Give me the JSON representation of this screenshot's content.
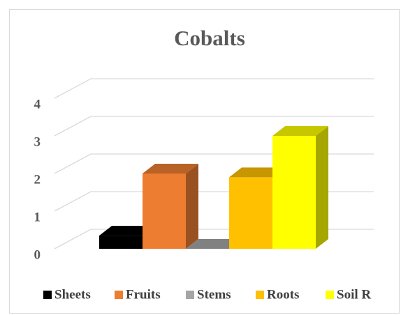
{
  "chart_data": {
    "type": "bar3d",
    "title": "Cobalts",
    "series": [
      {
        "name": "Sheets",
        "color": "#000000",
        "values": [
          0.35
        ]
      },
      {
        "name": "Fruits",
        "color": "#ed7d31",
        "values": [
          2.0
        ]
      },
      {
        "name": "Stems",
        "color": "#a5a5a5",
        "values": [
          0
        ]
      },
      {
        "name": "Roots",
        "color": "#ffc000",
        "values": [
          1.9
        ]
      },
      {
        "name": "Soil R",
        "color": "#ffff00",
        "values": [
          3.0
        ]
      }
    ],
    "ylim": [
      0,
      4.4
    ],
    "yticks": [
      0,
      1,
      2,
      3,
      4
    ],
    "grid": true,
    "legend": "bottom"
  }
}
